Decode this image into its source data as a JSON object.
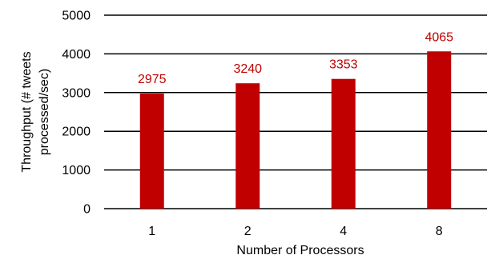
{
  "chart_data": {
    "type": "bar",
    "categories": [
      "1",
      "2",
      "4",
      "8"
    ],
    "values": [
      2975,
      3240,
      3353,
      4065
    ],
    "data_labels": [
      "2975",
      "3240",
      "3353",
      "4065"
    ],
    "xlabel": "Number of Processors",
    "ylabel_lines": [
      "Throughput (# tweets",
      "processed/sec)"
    ],
    "ylim": [
      0,
      5000
    ],
    "yticks": [
      "0",
      "1000",
      "2000",
      "3000",
      "4000",
      "5000"
    ],
    "ytick_values": [
      0,
      1000,
      2000,
      3000,
      4000,
      5000
    ],
    "grid": true,
    "bar_color": "#c00000",
    "label_color": "#c00000",
    "grid_color": "#000000",
    "text_color": "#000000"
  }
}
